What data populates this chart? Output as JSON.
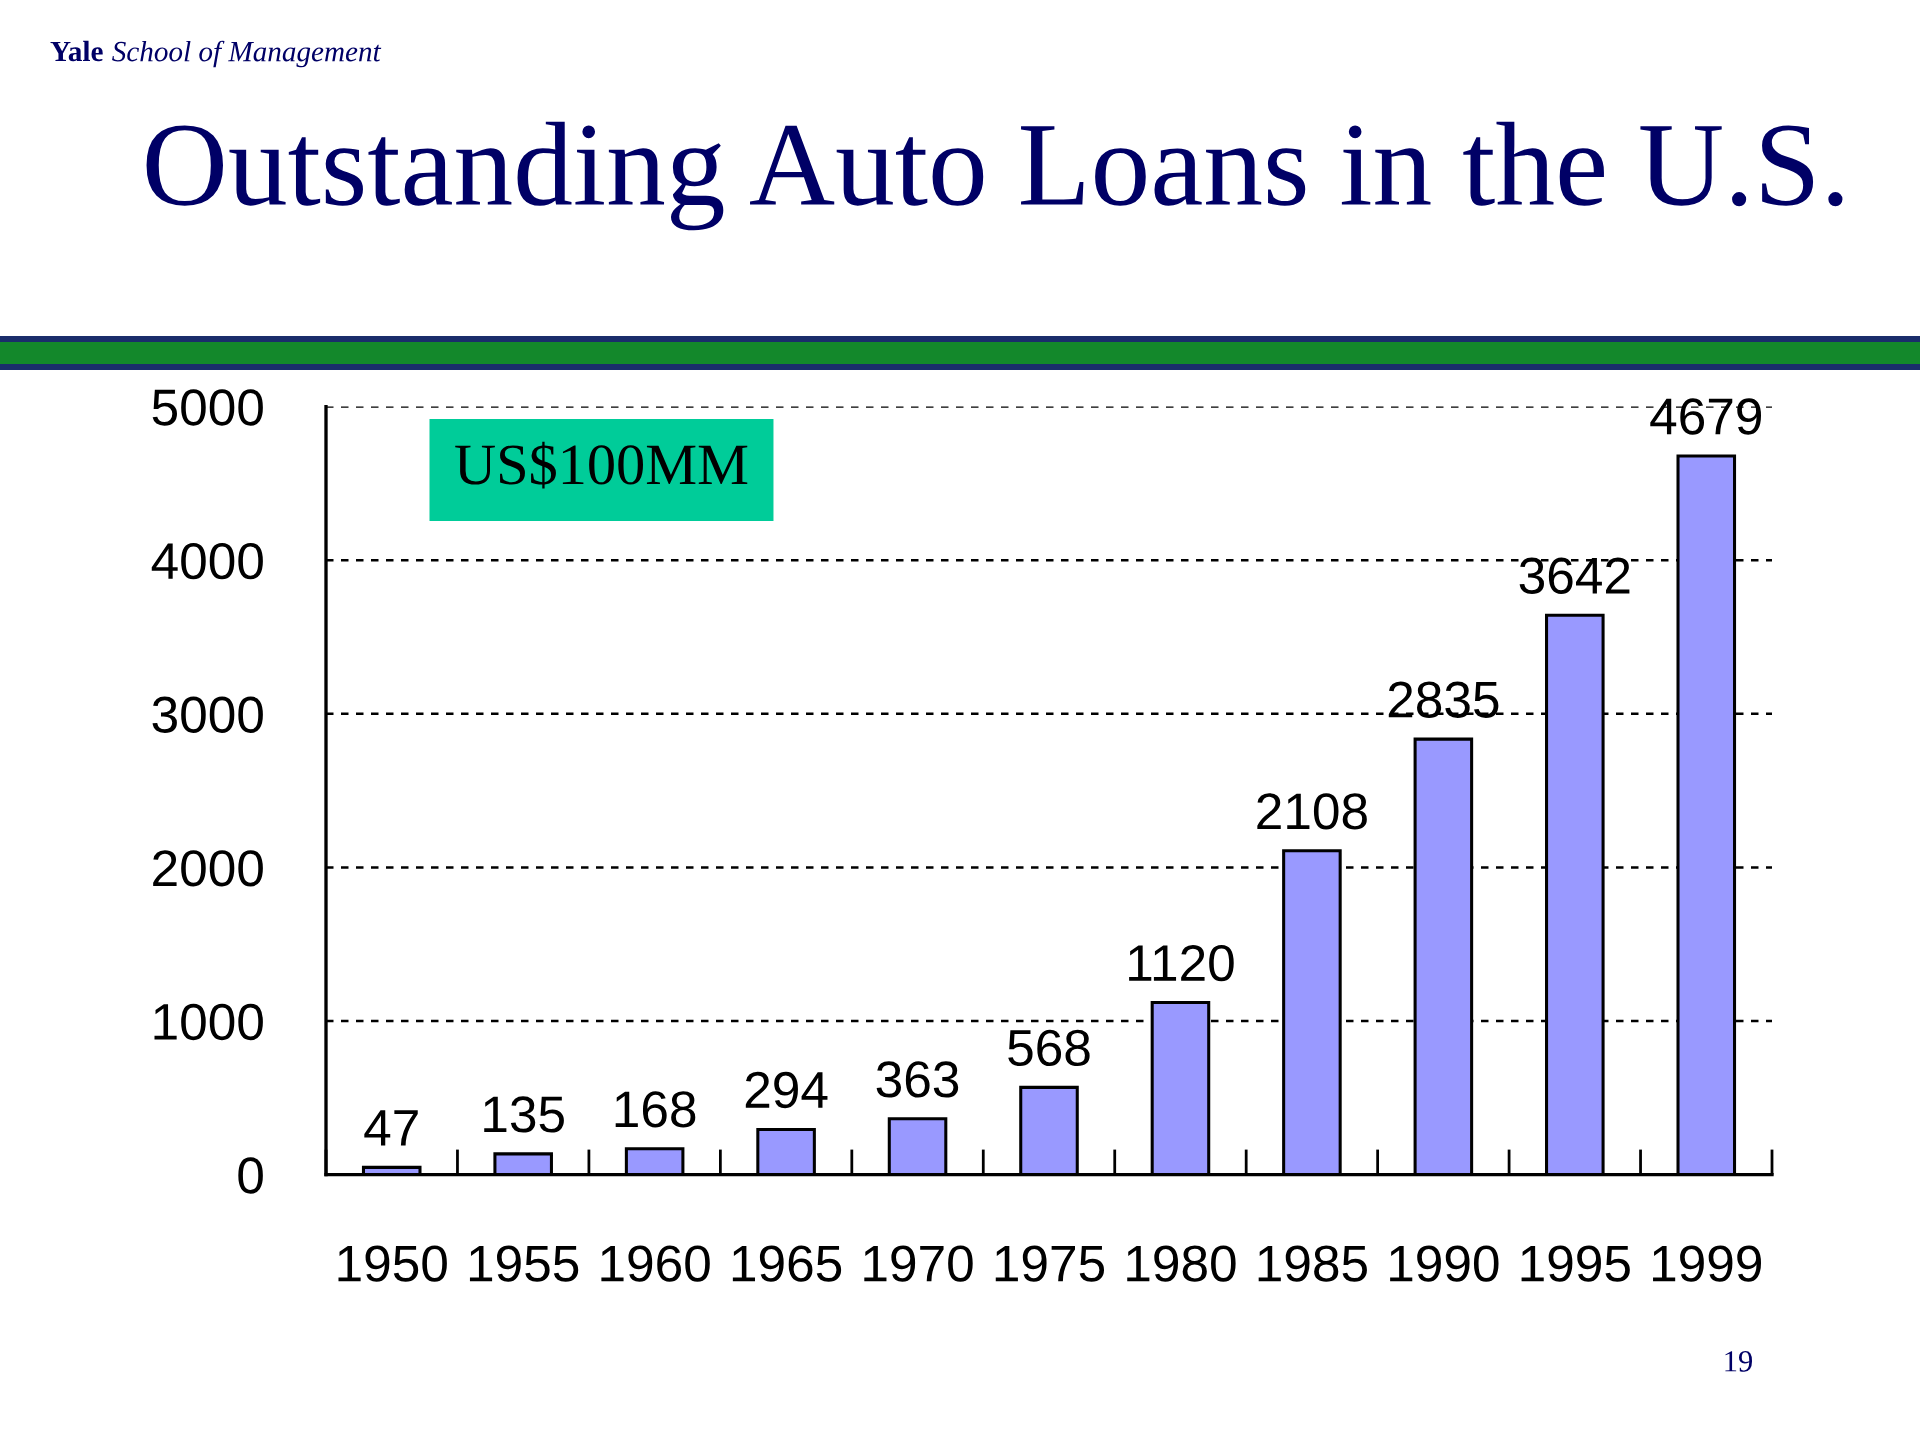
{
  "chart_data": {
    "type": "bar",
    "title": "Outstanding Auto Loans in the U.S.",
    "ylabel": "US$100MM",
    "categories": [
      "1950",
      "1955",
      "1960",
      "1965",
      "1970",
      "1975",
      "1980",
      "1985",
      "1990",
      "1995",
      "1999"
    ],
    "values": [
      47,
      135,
      168,
      294,
      363,
      568,
      1120,
      2108,
      2835,
      3642,
      4679
    ],
    "color": "#9999ff",
    "ylim": [
      0,
      5000
    ],
    "yticks": [
      0,
      1000,
      2000,
      3000,
      4000,
      5000
    ],
    "grid": "y",
    "data_labels": true,
    "annotations": [
      "Yale School of Management",
      "19"
    ]
  }
}
